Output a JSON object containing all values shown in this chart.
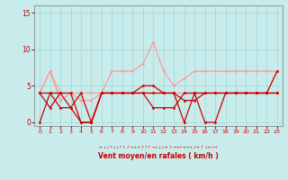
{
  "xlabel": "Vent moyen/en rafales ( km/h )",
  "xlim": [
    -0.5,
    23.5
  ],
  "ylim": [
    -0.5,
    16
  ],
  "yticks": [
    0,
    5,
    10,
    15
  ],
  "xticks": [
    0,
    1,
    2,
    3,
    4,
    5,
    6,
    7,
    8,
    9,
    10,
    11,
    12,
    13,
    14,
    15,
    16,
    17,
    18,
    19,
    20,
    21,
    22,
    23
  ],
  "bg_color": "#c8ecec",
  "grid_color": "#a0d4d4",
  "line_color_dark": "#cc0000",
  "line_color_light": "#ff9999",
  "lw": 0.9,
  "ms": 2.0,
  "light1": [
    4,
    7,
    3,
    4,
    4,
    4,
    4,
    7,
    7,
    7,
    8,
    11,
    7,
    5,
    6,
    7,
    7,
    7,
    7,
    7,
    7,
    7,
    7,
    7
  ],
  "light2": [
    4,
    7,
    4,
    4,
    3,
    3,
    4,
    4,
    4,
    4,
    4,
    4,
    4,
    4,
    4,
    4,
    4,
    4,
    4,
    4,
    4,
    4,
    4,
    7
  ],
  "dark1": [
    0,
    4,
    4,
    4,
    0,
    0,
    4,
    4,
    4,
    4,
    4,
    4,
    4,
    4,
    0,
    4,
    0,
    0,
    4,
    4,
    4,
    4,
    4,
    4
  ],
  "dark2": [
    4,
    2,
    4,
    2,
    4,
    0,
    4,
    4,
    4,
    4,
    4,
    2,
    2,
    2,
    4,
    4,
    4,
    4,
    4,
    4,
    4,
    4,
    4,
    4
  ],
  "dark3": [
    4,
    4,
    2,
    2,
    0,
    0,
    4,
    4,
    4,
    4,
    5,
    5,
    4,
    4,
    3,
    3,
    4,
    4,
    4,
    4,
    4,
    4,
    4,
    7
  ],
  "wind_dirs": "→ ↓↓↑↓↓↑↑ ↗ →↓→ ↑↑↑ →↓↓↓→ ↗ →→↑→ ←↓↓→ ↑ ↓←↓→"
}
